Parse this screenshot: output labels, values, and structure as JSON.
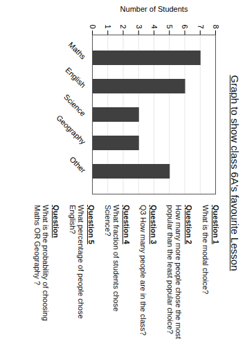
{
  "chart_data": {
    "type": "bar",
    "title": "Graph to show class 6A's favourite Lesson",
    "y_label": "Number of Students",
    "categories": [
      "Maths",
      "English",
      "Science",
      "Geography",
      "Other"
    ],
    "values": [
      7,
      6,
      3,
      3,
      5
    ],
    "color": "#404040",
    "ylim": [
      0,
      8
    ],
    "yticks": [
      0,
      1,
      2,
      3,
      4,
      5,
      6,
      7,
      8
    ],
    "grid": true
  },
  "questions": [
    {
      "heading": "Question 1",
      "text": "What is the modal choice?"
    },
    {
      "heading": "Question 2",
      "text": "How many more people chose the most popular than the least popular choice?"
    },
    {
      "heading": "Question 3",
      "text": "Q3 How many people are in the class?"
    },
    {
      "heading": "Question 4",
      "text": "What fraction of students chose Science?"
    },
    {
      "heading": "Question 5",
      "text": "What percentage of people chose English?"
    },
    {
      "heading": "Question",
      "text": "What is the probability of choosing Maths OR Geography ?"
    }
  ]
}
